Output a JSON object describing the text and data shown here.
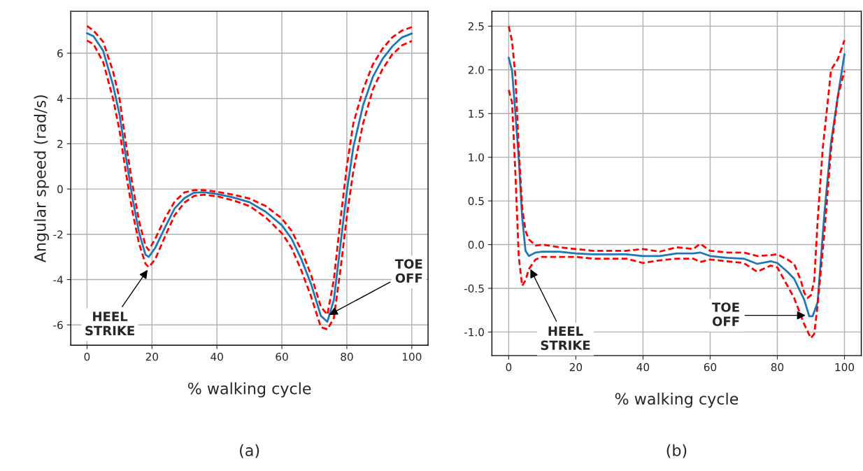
{
  "chart_data": [
    {
      "type": "line",
      "xlabel": "% walking cycle",
      "ylabel": "Angular speed (rad/s)",
      "xlim": [
        -5,
        105
      ],
      "xticks": [
        0,
        20,
        40,
        60,
        80,
        100
      ],
      "ylim": [
        -6.9,
        7.85
      ],
      "yticks": [
        -6,
        -4,
        -2,
        0,
        2,
        4,
        6
      ],
      "grid": true,
      "series": [
        {
          "color": "#1f77b4",
          "line_style": "solid",
          "x": [
            0,
            2,
            5,
            8,
            10,
            12,
            14,
            16,
            18,
            19,
            21,
            24,
            27,
            30,
            33,
            36,
            40,
            45,
            50,
            55,
            60,
            63,
            66,
            69,
            72,
            74,
            76,
            78,
            80,
            82,
            85,
            88,
            91,
            94,
            97,
            100
          ],
          "values": [
            6.88,
            6.75,
            6.1,
            4.6,
            3.3,
            1.4,
            -0.4,
            -1.9,
            -2.9,
            -3.0,
            -2.6,
            -1.7,
            -0.85,
            -0.4,
            -0.16,
            -0.14,
            -0.22,
            -0.37,
            -0.58,
            -1.0,
            -1.6,
            -2.2,
            -3.1,
            -4.2,
            -5.6,
            -5.86,
            -4.9,
            -2.5,
            -0.1,
            1.85,
            3.7,
            4.95,
            5.75,
            6.3,
            6.7,
            6.87
          ]
        },
        {
          "color": "#ff0000",
          "line_style": "dashed",
          "x": [
            0,
            2,
            5,
            8,
            10,
            12,
            14,
            16,
            18,
            19,
            21,
            24,
            27,
            30,
            33,
            36,
            40,
            45,
            50,
            55,
            60,
            63,
            66,
            69,
            72,
            74,
            76,
            78,
            80,
            82,
            85,
            88,
            91,
            94,
            97,
            100
          ],
          "values": [
            7.2,
            7.0,
            6.5,
            5.2,
            4.0,
            2.0,
            0.2,
            -1.4,
            -2.5,
            -2.7,
            -2.2,
            -1.3,
            -0.55,
            -0.15,
            -0.05,
            -0.05,
            -0.12,
            -0.25,
            -0.42,
            -0.75,
            -1.3,
            -1.85,
            -2.7,
            -3.8,
            -5.2,
            -5.55,
            -4.0,
            -1.4,
            1.0,
            2.9,
            4.4,
            5.5,
            6.2,
            6.7,
            7.0,
            7.15
          ]
        },
        {
          "color": "#ff0000",
          "line_style": "dashed",
          "x": [
            0,
            2,
            5,
            8,
            10,
            12,
            14,
            16,
            18,
            19,
            21,
            24,
            27,
            30,
            33,
            36,
            40,
            45,
            50,
            55,
            60,
            63,
            66,
            69,
            72,
            74,
            76,
            78,
            80,
            82,
            85,
            88,
            91,
            94,
            97,
            100
          ],
          "values": [
            6.56,
            6.4,
            5.6,
            4.0,
            2.6,
            0.7,
            -1.0,
            -2.4,
            -3.3,
            -3.45,
            -3.1,
            -2.1,
            -1.15,
            -0.6,
            -0.3,
            -0.25,
            -0.32,
            -0.5,
            -0.75,
            -1.25,
            -1.95,
            -2.6,
            -3.6,
            -4.75,
            -6.1,
            -6.2,
            -5.7,
            -3.6,
            -1.2,
            0.8,
            2.9,
            4.4,
            5.3,
            5.95,
            6.35,
            6.54
          ]
        }
      ],
      "annotations": [
        {
          "text": "HEEL\nSTRIKE",
          "x": 19,
          "y": -3.5
        },
        {
          "text": "TOE\nOFF",
          "x": 74,
          "y": -5.6
        },
        "(a)"
      ]
    },
    {
      "type": "line",
      "xlabel": "% walking cycle",
      "xlim": [
        -5,
        105
      ],
      "xticks": [
        0,
        20,
        40,
        60,
        80,
        100
      ],
      "ylim": [
        -1.27,
        2.67
      ],
      "yticks": [
        {
          "value": -1,
          "label": "-1.0"
        },
        -0.5,
        {
          "value": 0,
          "label": "0.0"
        },
        0.5,
        {
          "value": 1,
          "label": "1.0"
        },
        1.5,
        {
          "value": 2,
          "label": "2.0"
        },
        2.5
      ],
      "grid": true,
      "series": [
        {
          "color": "#1f77b4",
          "line_style": "solid",
          "x": [
            0,
            1,
            2,
            3,
            4,
            5,
            6,
            8,
            10,
            15,
            20,
            25,
            30,
            35,
            40,
            45,
            50,
            55,
            57,
            60,
            65,
            70,
            74,
            78,
            80,
            83,
            85,
            88,
            89.5,
            90.5,
            92,
            94,
            96,
            98,
            100
          ],
          "values": [
            2.14,
            1.99,
            1.5,
            0.98,
            0.32,
            -0.07,
            -0.13,
            -0.09,
            -0.08,
            -0.08,
            -0.1,
            -0.11,
            -0.11,
            -0.11,
            -0.13,
            -0.13,
            -0.1,
            -0.1,
            -0.09,
            -0.13,
            -0.15,
            -0.16,
            -0.22,
            -0.19,
            -0.21,
            -0.31,
            -0.39,
            -0.63,
            -0.82,
            -0.82,
            -0.66,
            0.35,
            1.17,
            1.69,
            2.18
          ]
        },
        {
          "color": "#ff0000",
          "line_style": "dashed",
          "x": [
            0,
            1,
            2,
            3,
            4,
            5,
            6,
            8,
            10,
            15,
            20,
            25,
            30,
            35,
            40,
            45,
            50,
            55,
            57,
            60,
            65,
            70,
            74,
            78,
            80,
            83,
            85,
            87,
            88,
            89,
            90,
            91,
            92,
            93.5,
            95,
            96,
            98,
            100
          ],
          "values": [
            2.5,
            2.33,
            1.93,
            1.09,
            0.43,
            0.16,
            0.06,
            -0.01,
            0.0,
            -0.03,
            -0.05,
            -0.07,
            -0.07,
            -0.07,
            -0.05,
            -0.08,
            -0.03,
            -0.05,
            0.01,
            -0.07,
            -0.09,
            -0.09,
            -0.13,
            -0.12,
            -0.11,
            -0.17,
            -0.22,
            -0.41,
            -0.55,
            -0.61,
            -0.58,
            -0.41,
            0.27,
            1.09,
            1.63,
            2.0,
            2.12,
            2.34
          ]
        },
        {
          "color": "#ff0000",
          "line_style": "dashed",
          "x": [
            0,
            1,
            2,
            3,
            4,
            5,
            6,
            8,
            10,
            15,
            20,
            25,
            30,
            35,
            40,
            45,
            50,
            55,
            57,
            60,
            65,
            70,
            74,
            78,
            80,
            83,
            85,
            88,
            90,
            91,
            92,
            94,
            96,
            98,
            100
          ],
          "values": [
            1.77,
            1.63,
            0.81,
            -0.14,
            -0.47,
            -0.41,
            -0.28,
            -0.17,
            -0.14,
            -0.14,
            -0.14,
            -0.16,
            -0.16,
            -0.16,
            -0.21,
            -0.18,
            -0.16,
            -0.16,
            -0.2,
            -0.17,
            -0.19,
            -0.21,
            -0.31,
            -0.24,
            -0.26,
            -0.47,
            -0.61,
            -0.91,
            -1.07,
            -1.02,
            -0.69,
            0.13,
            1.09,
            1.69,
            1.99
          ]
        }
      ],
      "annotations": [
        {
          "text": "HEEL\nSTRIKE",
          "x": 6.2,
          "y": -0.26
        },
        {
          "text": "TOE\nOFF",
          "x": 89,
          "y": -0.81
        },
        "(b)"
      ]
    }
  ]
}
